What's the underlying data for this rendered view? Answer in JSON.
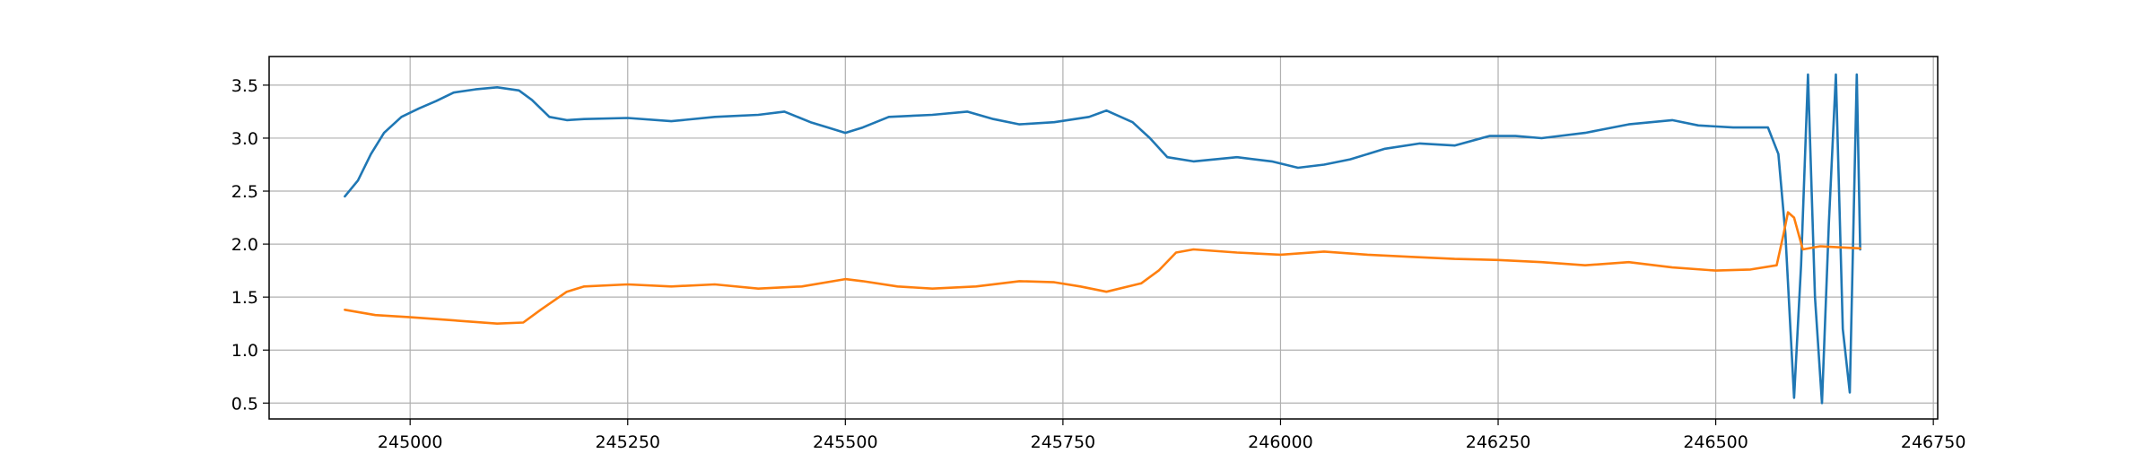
{
  "chart_data": {
    "type": "line",
    "title": "",
    "xlabel": "",
    "ylabel": "",
    "grid": true,
    "legend": "none",
    "xlim": [
      244838,
      246755
    ],
    "ylim": [
      0.35,
      3.77
    ],
    "xticks": [
      245000,
      245250,
      245500,
      245750,
      246000,
      246250,
      246500,
      246750
    ],
    "yticks": [
      0.5,
      1.0,
      1.5,
      2.0,
      2.5,
      3.0,
      3.5
    ],
    "xtick_labels": [
      "245000",
      "245250",
      "245500",
      "245750",
      "246000",
      "246250",
      "246500",
      "246750"
    ],
    "ytick_labels": [
      "0.5",
      "1.0",
      "1.5",
      "2.0",
      "2.5",
      "3.0",
      "3.5"
    ],
    "series": [
      {
        "color": "#1f77b4",
        "x": [
          244925,
          244940,
          244955,
          244970,
          244990,
          245010,
          245030,
          245050,
          245075,
          245100,
          245125,
          245140,
          245160,
          245180,
          245200,
          245250,
          245300,
          245350,
          245400,
          245430,
          245460,
          245480,
          245500,
          245520,
          245550,
          245600,
          245640,
          245670,
          245700,
          245740,
          245780,
          245800,
          245830,
          245850,
          245870,
          245900,
          245950,
          245990,
          246020,
          246050,
          246080,
          246120,
          246160,
          246200,
          246240,
          246270,
          246300,
          246350,
          246400,
          246450,
          246480,
          246520,
          246560,
          246572,
          246580,
          246590,
          246598,
          246606,
          246614,
          246622,
          246630,
          246638,
          246646,
          246654,
          246662,
          246666
        ],
        "y": [
          2.45,
          2.6,
          2.85,
          3.05,
          3.2,
          3.28,
          3.35,
          3.43,
          3.46,
          3.48,
          3.45,
          3.36,
          3.2,
          3.17,
          3.18,
          3.19,
          3.16,
          3.2,
          3.22,
          3.25,
          3.15,
          3.1,
          3.05,
          3.1,
          3.2,
          3.22,
          3.25,
          3.18,
          3.13,
          3.15,
          3.2,
          3.26,
          3.15,
          3.0,
          2.82,
          2.78,
          2.82,
          2.78,
          2.72,
          2.75,
          2.8,
          2.9,
          2.95,
          2.93,
          3.02,
          3.02,
          3.0,
          3.05,
          3.13,
          3.17,
          3.12,
          3.1,
          3.1,
          2.85,
          2.1,
          0.55,
          1.8,
          3.6,
          1.5,
          0.5,
          2.2,
          3.6,
          1.2,
          0.6,
          3.6,
          1.95
        ]
      },
      {
        "color": "#ff7f0e",
        "x": [
          244925,
          244960,
          245000,
          245050,
          245100,
          245130,
          245150,
          245180,
          245200,
          245250,
          245300,
          245350,
          245400,
          245450,
          245500,
          245520,
          245560,
          245600,
          245650,
          245700,
          245740,
          245770,
          245800,
          245840,
          245860,
          245880,
          245900,
          245950,
          246000,
          246050,
          246100,
          246150,
          246200,
          246250,
          246300,
          246350,
          246400,
          246450,
          246500,
          246540,
          246570,
          246578,
          246583,
          246590,
          246600,
          246620,
          246640,
          246666
        ],
        "y": [
          1.38,
          1.33,
          1.31,
          1.28,
          1.25,
          1.26,
          1.38,
          1.55,
          1.6,
          1.62,
          1.6,
          1.62,
          1.58,
          1.6,
          1.67,
          1.65,
          1.6,
          1.58,
          1.6,
          1.65,
          1.64,
          1.6,
          1.55,
          1.63,
          1.75,
          1.92,
          1.95,
          1.92,
          1.9,
          1.93,
          1.9,
          1.88,
          1.86,
          1.85,
          1.83,
          1.8,
          1.83,
          1.78,
          1.75,
          1.76,
          1.8,
          2.1,
          2.3,
          2.25,
          1.95,
          1.98,
          1.97,
          1.96
        ]
      }
    ]
  }
}
